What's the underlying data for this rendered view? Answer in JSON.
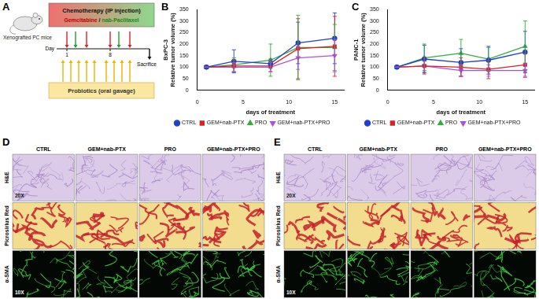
{
  "chart_data": [
    {
      "type": "line",
      "panel_label": "B",
      "title": "BxPC-3",
      "xlabel": "days of treatment",
      "ylabel": "Relative tumor volume (%)",
      "x": [
        1,
        4,
        8,
        11,
        15
      ],
      "xlim": [
        0,
        16
      ],
      "xticks": [
        0,
        5,
        10,
        15
      ],
      "ylim": [
        0,
        350
      ],
      "yticks": [
        0,
        50,
        100,
        150,
        200,
        250,
        300,
        350
      ],
      "grid": false,
      "legend": "bottom",
      "series": [
        {
          "name": "CTRL",
          "color": "#1f3fd1",
          "marker": "circle",
          "values": [
            100,
            125,
            115,
            205,
            225
          ],
          "errors": [
            0,
            50,
            20,
            90,
            110
          ]
        },
        {
          "name": "GEM+nab-PTX",
          "color": "#e02020",
          "marker": "square",
          "values": [
            100,
            105,
            105,
            180,
            190
          ],
          "errors": [
            0,
            25,
            25,
            130,
            130
          ]
        },
        {
          "name": "PRO",
          "color": "#2fae3c",
          "marker": "triangle-up",
          "values": [
            100,
            110,
            130,
            185,
            185
          ],
          "errors": [
            0,
            30,
            70,
            140,
            100
          ]
        },
        {
          "name": "GEM+nab-PTX+PRO",
          "color": "#b04ee0",
          "marker": "triangle-down",
          "values": [
            100,
            100,
            100,
            140,
            150
          ],
          "errors": [
            0,
            20,
            20,
            50,
            70
          ]
        }
      ]
    },
    {
      "type": "line",
      "panel_label": "C",
      "title": "PANC-1",
      "xlabel": "days of treatment",
      "ylabel": "Relative tumor volume (%)",
      "x": [
        1,
        4,
        8,
        11,
        15
      ],
      "xlim": [
        0,
        16
      ],
      "xticks": [
        0,
        5,
        10,
        15
      ],
      "ylim": [
        0,
        350
      ],
      "yticks": [
        0,
        50,
        100,
        150,
        200,
        250,
        300,
        350
      ],
      "grid": false,
      "legend": "bottom",
      "series": [
        {
          "name": "CTRL",
          "color": "#1f3fd1",
          "marker": "circle",
          "values": [
            100,
            135,
            120,
            130,
            165
          ],
          "errors": [
            0,
            60,
            60,
            60,
            90
          ]
        },
        {
          "name": "GEM+nab-PTX",
          "color": "#e02020",
          "marker": "square",
          "values": [
            100,
            105,
            100,
            90,
            110
          ],
          "errors": [
            0,
            35,
            40,
            40,
            50
          ]
        },
        {
          "name": "PRO",
          "color": "#2fae3c",
          "marker": "triangle-up",
          "values": [
            100,
            140,
            160,
            135,
            190
          ],
          "errors": [
            0,
            60,
            60,
            50,
            110
          ]
        },
        {
          "name": "GEM+nab-PTX+PRO",
          "color": "#b04ee0",
          "marker": "triangle-down",
          "values": [
            100,
            105,
            85,
            85,
            85
          ],
          "errors": [
            0,
            20,
            25,
            25,
            30
          ]
        }
      ]
    }
  ],
  "schematic": {
    "panel_label": "A",
    "mouse_label": "Xenografted PC mice",
    "chemo_title": "Chemotherapy (IP injection)",
    "chemo_drugs": [
      "Gemcitabine",
      "nab-Paclitaxel"
    ],
    "drug_separator": "/",
    "day_label": "Day",
    "day_ticks": [
      "1",
      "8"
    ],
    "end_label": "Sacrifice",
    "probiotics_label": "Probiotics (oral gavage)"
  },
  "histology": [
    {
      "panel_label": "D",
      "columns": [
        "CTRL",
        "GEM+nab-PTX",
        "PRO",
        "GEM+nab-PTX+PRO"
      ],
      "rows": [
        {
          "label": "H&E",
          "magnification": "20X"
        },
        {
          "label": "Picrosirius Red"
        },
        {
          "label": "α-SMA",
          "magnification": "10X"
        }
      ]
    },
    {
      "panel_label": "E",
      "columns": [
        "CTRL",
        "GEM+nab-PTX",
        "PRO",
        "GEM+nab-PTX+PRO"
      ],
      "rows": [
        {
          "label": "H&E",
          "magnification": "20X"
        },
        {
          "label": "Picrosirius Red"
        },
        {
          "label": "α-SMA",
          "magnification": "10X"
        }
      ]
    }
  ]
}
